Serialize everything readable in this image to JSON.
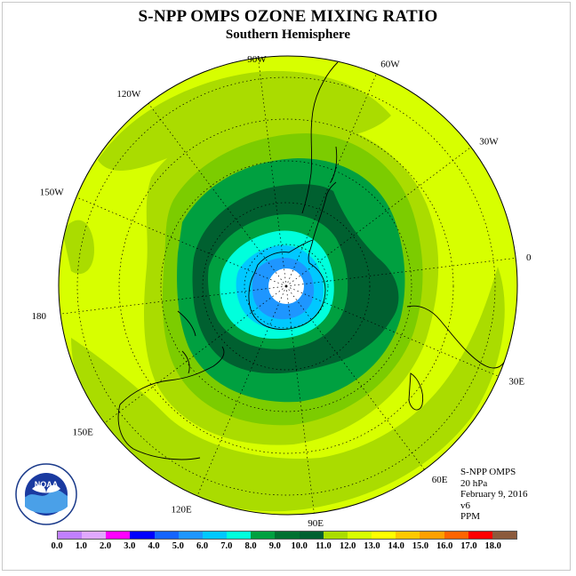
{
  "title": "S-NPP OMPS OZONE MIXING RATIO",
  "subtitle": "Southern Hemisphere",
  "longitude_labels": [
    "90W",
    "60W",
    "30W",
    "0",
    "30E",
    "60E",
    "90E",
    "120E",
    "150E",
    "180",
    "150W",
    "120W"
  ],
  "info": {
    "instrument": "S-NPP OMPS",
    "pressure": "20 hPa",
    "date": "February 9, 2016",
    "version": "v6",
    "units": "PPM"
  },
  "logo": {
    "text": "NOAA",
    "name": "noaa-logo"
  },
  "colorbar": {
    "colors": [
      "#c080ff",
      "#e0a8ff",
      "#ff00ff",
      "#0000ff",
      "#1464ff",
      "#1e96ff",
      "#00c8ff",
      "#00ffdc",
      "#00a040",
      "#007030",
      "#006030",
      "#aadc00",
      "#d7ff00",
      "#ffff00",
      "#ffc800",
      "#ffa000",
      "#ff6400",
      "#ff0000",
      "#8b5a3c"
    ],
    "tick_labels": [
      "0.0",
      "1.0",
      "2.0",
      "3.0",
      "4.0",
      "5.0",
      "6.0",
      "7.0",
      "8.0",
      "9.0",
      "10.0",
      "11.0",
      "12.0",
      "13.0",
      "14.0",
      "15.0",
      "16.0",
      "17.0",
      "18.0"
    ]
  },
  "map": {
    "projection": "polar-stereographic-south",
    "ocean_color": "#d7ff00",
    "contour_levels_ppm": [
      {
        "min": 11.0,
        "color": "#aadc00"
      },
      {
        "min": 10.0,
        "color": "#7ccc00"
      },
      {
        "min": 9.0,
        "color": "#00a040"
      },
      {
        "min": 8.0,
        "color": "#006030"
      },
      {
        "min": 7.0,
        "color": "#00ffdc"
      },
      {
        "min": 6.0,
        "color": "#00c8ff"
      },
      {
        "min": 5.0,
        "color": "#1e96ff"
      }
    ]
  }
}
